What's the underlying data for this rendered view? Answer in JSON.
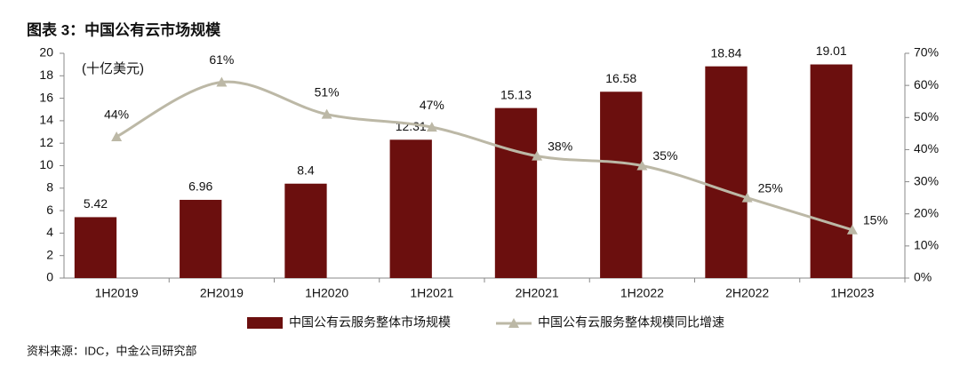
{
  "chart_data": {
    "type": "bar_line",
    "title": "图表 3：中国公有云市场规模",
    "y_label": "(十亿美元)",
    "source": "资料来源：IDC，中金公司研究部",
    "categories": [
      "1H2019",
      "2H2019",
      "1H2020",
      "1H2021",
      "2H2021",
      "1H2022",
      "2H2022",
      "1H2023"
    ],
    "series": [
      {
        "name": "中国公有云服务整体市场规模",
        "type": "bar",
        "color": "#6b0f0e",
        "values": [
          5.42,
          6.96,
          8.4,
          12.31,
          15.13,
          16.58,
          18.84,
          19.01
        ]
      },
      {
        "name": "中国公有云服务整体规模同比增速",
        "type": "line",
        "axis": "y2",
        "color": "#bcb8a6",
        "values": [
          44,
          61,
          51,
          47,
          38,
          35,
          25,
          15
        ],
        "value_labels": [
          "44%",
          "61%",
          "51%",
          "47%",
          "38%",
          "35%",
          "25%",
          "15%"
        ]
      }
    ],
    "ylim": [
      0,
      20
    ],
    "yticks": [
      0,
      2,
      4,
      6,
      8,
      10,
      12,
      14,
      16,
      18,
      20
    ],
    "y2lim": [
      0,
      70
    ],
    "y2ticks": [
      {
        "value": 0,
        "label": "0%"
      },
      {
        "value": 10,
        "label": "10%"
      },
      {
        "value": 20,
        "label": "20%"
      },
      {
        "value": 30,
        "label": "30%"
      },
      {
        "value": 40,
        "label": "40%"
      },
      {
        "value": 50,
        "label": "50%"
      },
      {
        "value": 60,
        "label": "60%"
      },
      {
        "value": 70,
        "label": "70%"
      }
    ],
    "grid": false
  }
}
